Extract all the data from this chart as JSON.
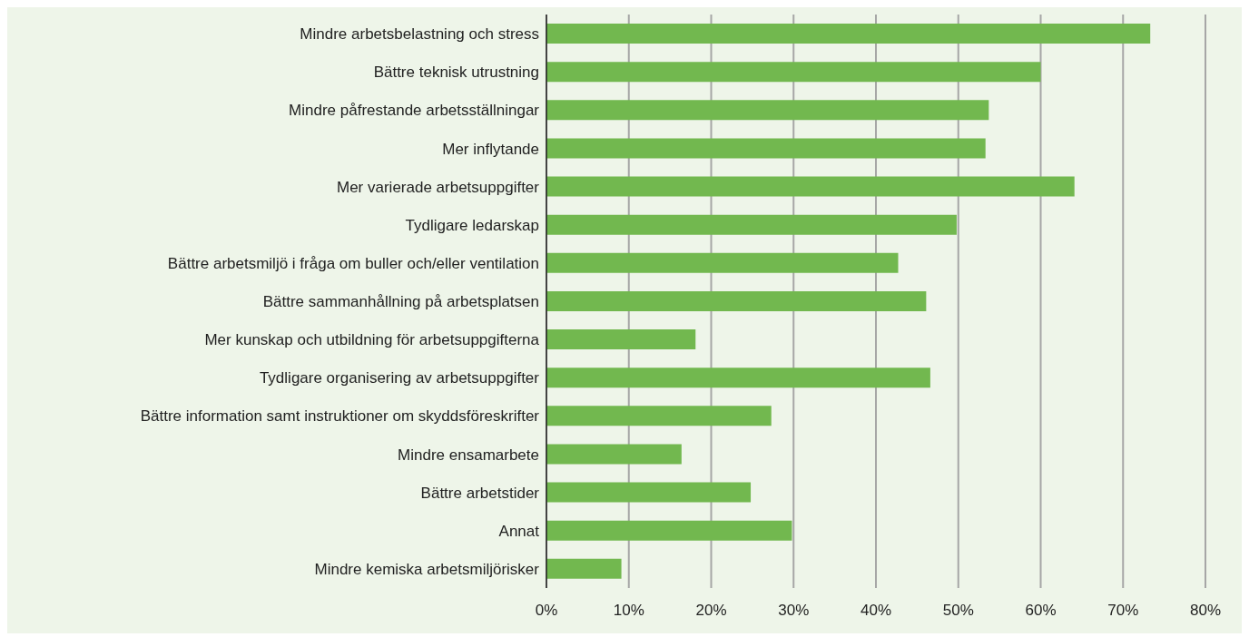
{
  "chart_data": {
    "type": "bar",
    "orientation": "horizontal",
    "categories": [
      "Mindre arbetsbelastning och stress",
      "Bättre teknisk utrustning",
      "Mindre påfrestande arbetsställningar",
      "Mer inflytande",
      "Mer varierade arbetsuppgifter",
      "Tydligare ledarskap",
      "Bättre arbetsmiljö i fråga om buller och/eller ventilation",
      "Bättre sammanhållning på arbetsplatsen",
      "Mer kunskap och utbildning för arbetsuppgifterna",
      "Tydligare organisering av arbetsuppgifter",
      "Bättre information samt instruktioner om skyddsföreskrifter",
      "Mindre ensamarbete",
      "Bättre arbetstider",
      "Annat",
      "Mindre kemiska arbetsmiljörisker"
    ],
    "values": [
      73.3,
      60,
      53.7,
      53.3,
      64.1,
      49.8,
      42.7,
      46.1,
      18.1,
      46.6,
      27.3,
      16.4,
      24.8,
      29.8,
      9.1
    ],
    "color": "#72b84f",
    "xlim": [
      0,
      80
    ],
    "xticks": [
      {
        "value": 0,
        "label": "0%"
      },
      {
        "value": 10,
        "label": "10%"
      },
      {
        "value": 20,
        "label": "20%"
      },
      {
        "value": 30,
        "label": "30%"
      },
      {
        "value": 40,
        "label": "40%"
      },
      {
        "value": 50,
        "label": "50%"
      },
      {
        "value": 60,
        "label": "60%"
      },
      {
        "value": 70,
        "label": "70%"
      },
      {
        "value": 80,
        "label": "80%"
      }
    ],
    "grid": "x"
  }
}
